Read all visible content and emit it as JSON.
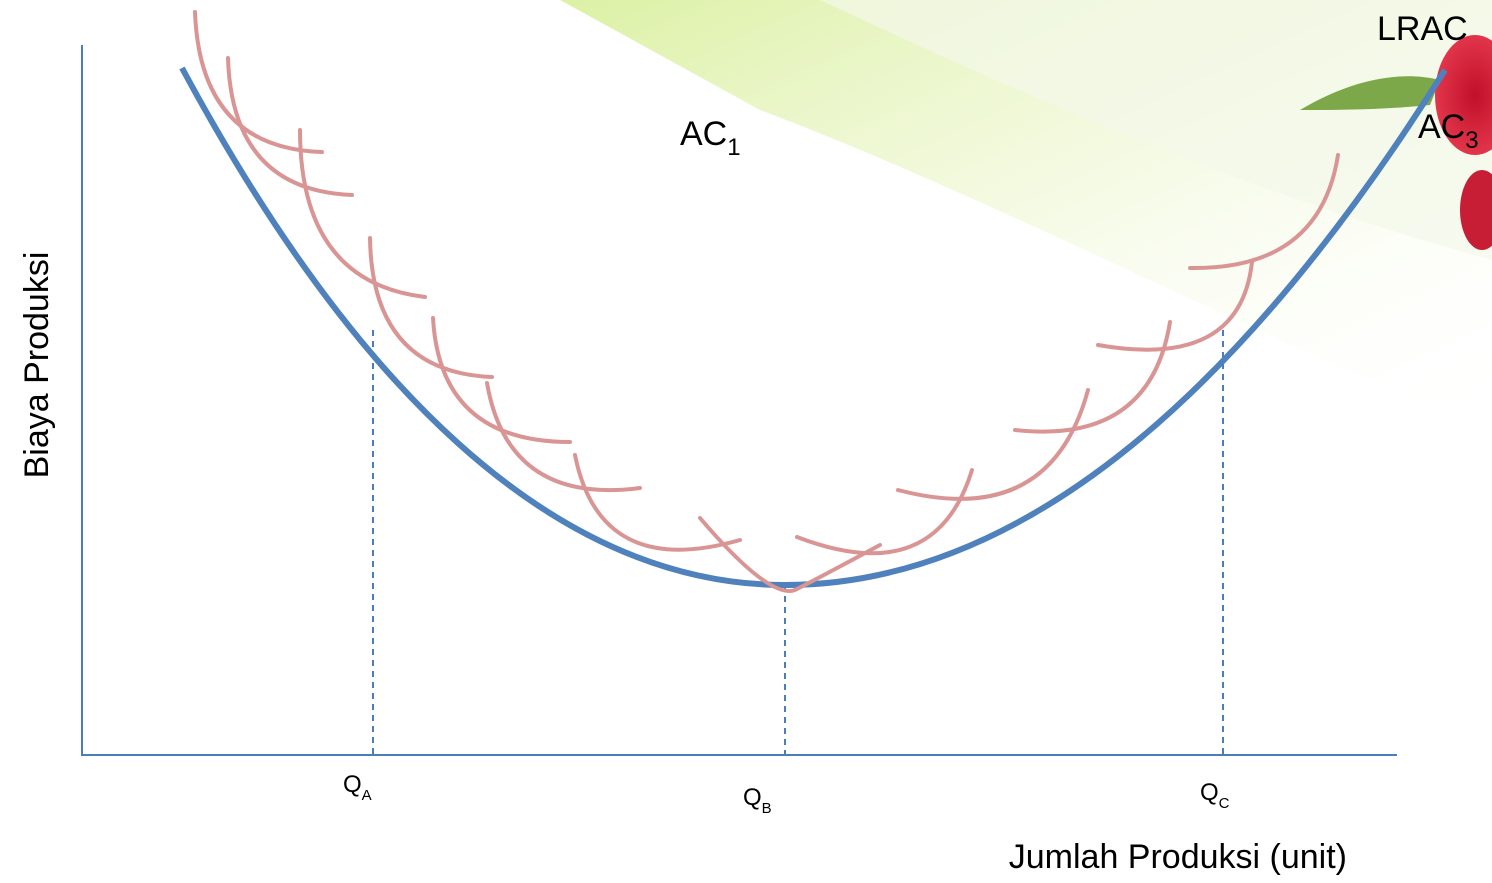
{
  "curve_labels": [
    {
      "text": "LRAC"
    },
    {
      "text": "AC",
      "sub": "1"
    },
    {
      "text": "AC",
      "sub": "3"
    }
  ],
  "x_ticks": [
    {
      "text": "Q",
      "sub": "A"
    },
    {
      "text": "Q",
      "sub": "B"
    },
    {
      "text": "Q",
      "sub": "C"
    }
  ],
  "y_axis_label": "Biaya Produksi",
  "x_axis_label": "Jumlah Produksi (unit)"
}
